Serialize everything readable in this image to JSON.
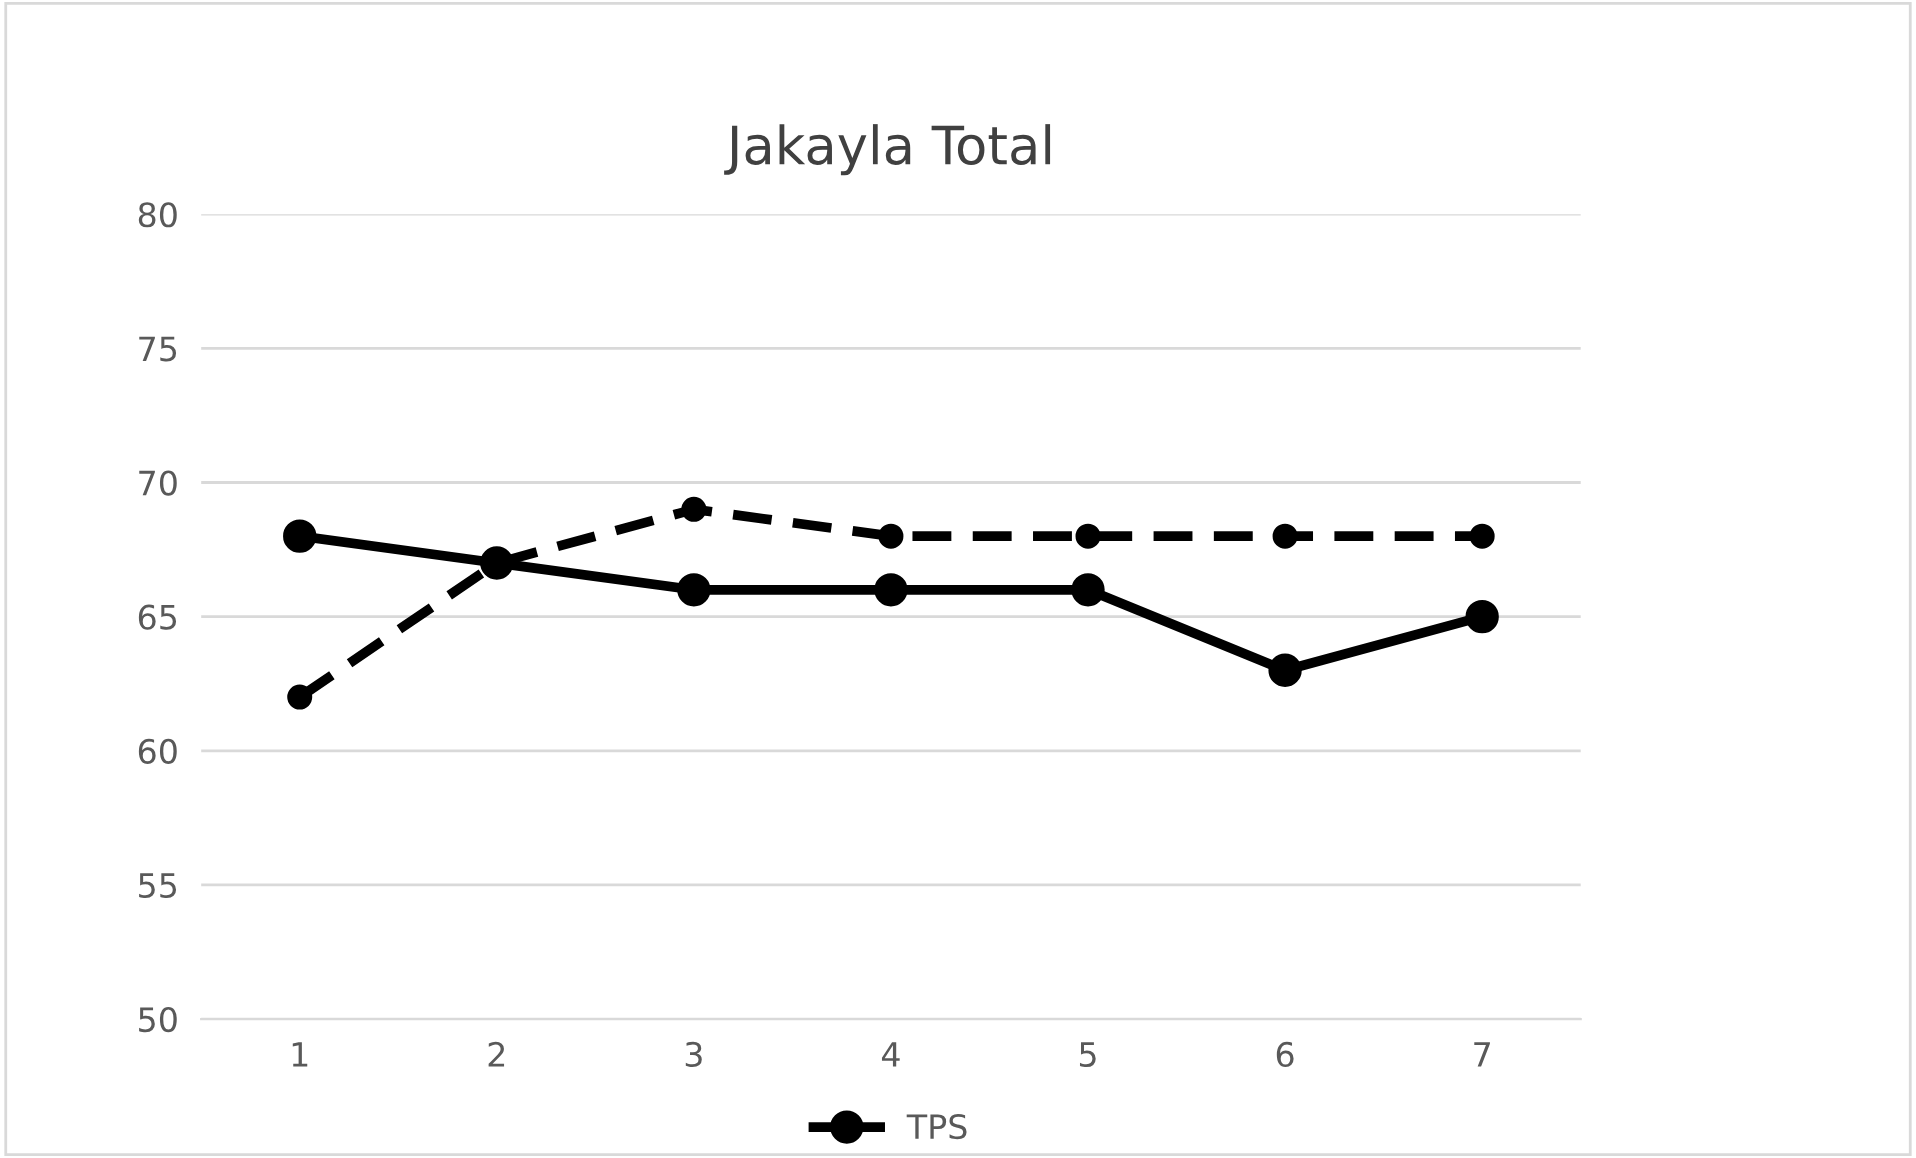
{
  "chart_data": {
    "type": "line",
    "title": "Jakayla Total",
    "categories": [
      "1",
      "2",
      "3",
      "4",
      "5",
      "6",
      "7"
    ],
    "series": [
      {
        "name": "TPS",
        "color": "#000000",
        "line_style": "solid",
        "values": [
          68,
          67,
          66,
          66,
          66,
          63,
          65
        ]
      },
      {
        "color": "#000000",
        "line_style": "dashed",
        "values": [
          62,
          67,
          69,
          68,
          68,
          68,
          68
        ]
      }
    ],
    "ylim": [
      50,
      80
    ],
    "yticks": [
      50,
      55,
      60,
      65,
      70,
      75,
      80
    ],
    "grid": "y",
    "legend": "bottom",
    "marker": "circle"
  }
}
